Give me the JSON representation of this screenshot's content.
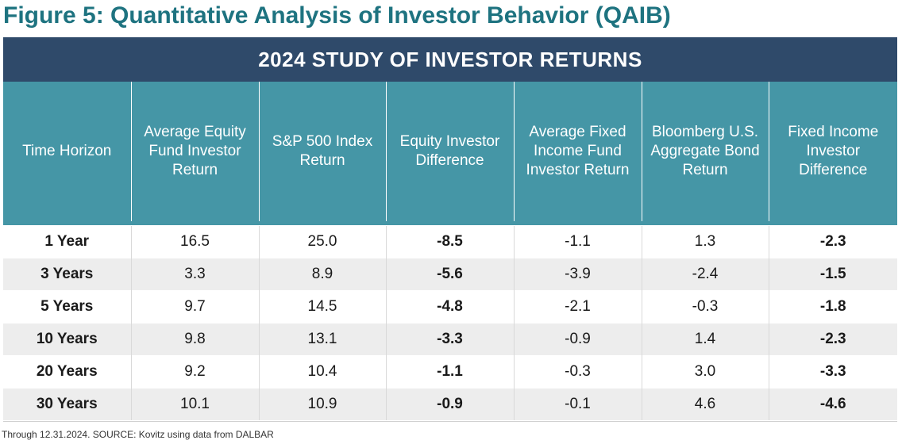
{
  "figure_title": "Figure 5: Quantitative Analysis of Investor Behavior (QAIB)",
  "banner_title": "2024 STUDY OF INVESTOR RETURNS",
  "columns": [
    "Time Horizon",
    "Average Equity Fund Investor Return",
    "S&P 500 Index Return",
    "Equity Investor Difference",
    "Average Fixed Income Fund Investor Return",
    "Bloomberg U.S. Aggregate Bond Return",
    "Fixed Income Investor Difference"
  ],
  "rows": [
    [
      "1 Year",
      "16.5",
      "25.0",
      "-8.5",
      "-1.1",
      "1.3",
      "-2.3"
    ],
    [
      "3 Years",
      "3.3",
      "8.9",
      "-5.6",
      "-3.9",
      "-2.4",
      "-1.5"
    ],
    [
      "5 Years",
      "9.7",
      "14.5",
      "-4.8",
      "-2.1",
      "-0.3",
      "-1.8"
    ],
    [
      "10 Years",
      "9.8",
      "13.1",
      "-3.3",
      "-0.9",
      "1.4",
      "-2.3"
    ],
    [
      "20 Years",
      "9.2",
      "10.4",
      "-1.1",
      "-0.3",
      "3.0",
      "-3.3"
    ],
    [
      "30 Years",
      "10.1",
      "10.9",
      "-0.9",
      "-0.1",
      "4.6",
      "-4.6"
    ]
  ],
  "source_note": "Through 12.31.2024. SOURCE: Kovitz using data from DALBAR",
  "colors": {
    "title": "#1e7380",
    "banner": "#2f4a6a",
    "header": "#4596a6",
    "row_alt": "#ededed"
  }
}
